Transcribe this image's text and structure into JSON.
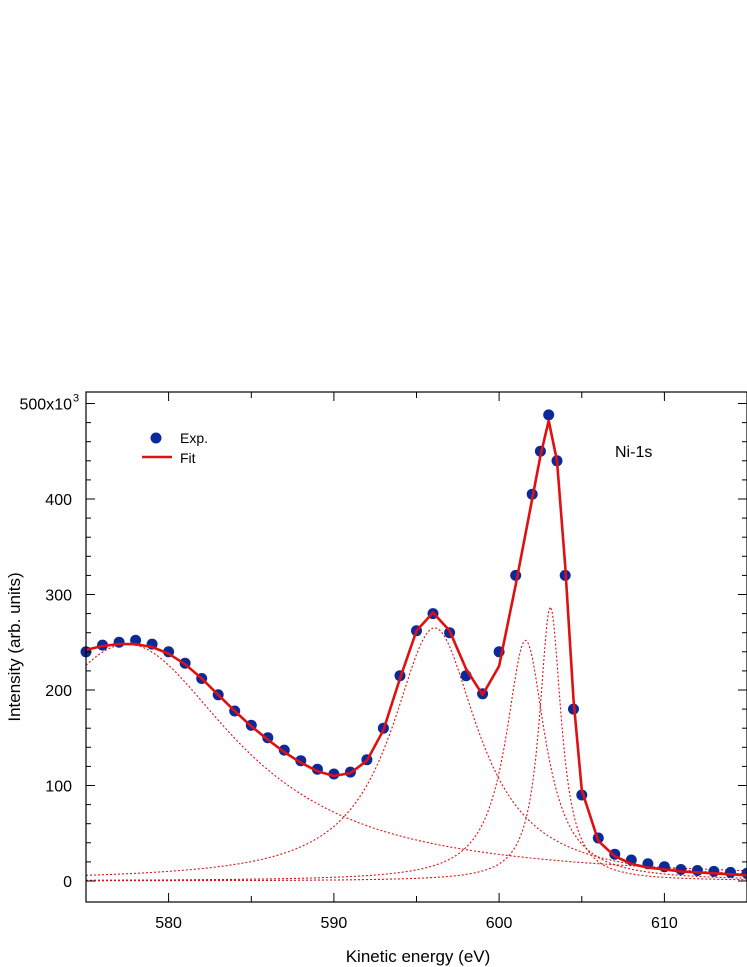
{
  "chart_data": {
    "type": "scatter",
    "title": "",
    "xlabel": "Kinetic energy (eV)",
    "ylabel": "Intensity (arb. units)",
    "xlim": [
      575,
      615
    ],
    "ylim": [
      -22000,
      512000
    ],
    "xticks": [
      580,
      590,
      600,
      610
    ],
    "xtick_labels": [
      "580",
      "590",
      "600",
      "610"
    ],
    "yticks": [
      0,
      100000,
      200000,
      300000,
      400000,
      500000
    ],
    "ytick_labels": [
      "0",
      "100",
      "200",
      "300",
      "400",
      "500x10"
    ],
    "ytick_exponent": "3",
    "annotation": "Ni-1s",
    "legend_position": "top-left",
    "legend": [
      {
        "label": "Exp.",
        "marker": "circle",
        "color": "#0a2a9a"
      },
      {
        "label": "Fit",
        "marker": "line",
        "color": "#e01010"
      }
    ],
    "components": [
      {
        "type": "lorentzian",
        "center": 577.5,
        "amplitude": 248000,
        "fwhm": 16,
        "color": "#e01010",
        "style": "dotted"
      },
      {
        "type": "lorentzian",
        "center": 596.1,
        "amplitude": 265000,
        "fwhm": 6.4,
        "color": "#e01010",
        "style": "dotted"
      },
      {
        "type": "lorentzian",
        "center": 601.6,
        "amplitude": 252000,
        "fwhm": 2.9,
        "color": "#e01010",
        "style": "dotted"
      },
      {
        "type": "lorentzian",
        "center": 603.1,
        "amplitude": 287000,
        "fwhm": 1.6,
        "color": "#e01010",
        "style": "dotted"
      }
    ],
    "series": [
      {
        "name": "Exp.",
        "color": "#0a2a9a",
        "x": [
          575,
          576,
          577,
          578,
          579,
          580,
          581,
          582,
          583,
          584,
          585,
          586,
          587,
          588,
          589,
          590,
          591,
          592,
          593,
          594,
          595,
          596,
          597,
          598,
          599,
          600,
          601,
          602,
          602.5,
          603,
          603.5,
          604,
          604.5,
          605,
          606,
          607,
          608,
          609,
          610,
          611,
          612,
          613,
          614,
          615
        ],
        "y": [
          240000,
          247000,
          250000,
          252000,
          248000,
          240000,
          228000,
          212000,
          195000,
          178000,
          163000,
          150000,
          137000,
          126000,
          117000,
          112000,
          114000,
          127000,
          160000,
          215000,
          262000,
          280000,
          260000,
          215000,
          196000,
          240000,
          320000,
          405000,
          450000,
          488000,
          440000,
          320000,
          180000,
          90000,
          45000,
          28000,
          22000,
          18000,
          15000,
          12000,
          11000,
          10000,
          9000,
          8000
        ]
      },
      {
        "name": "Fit",
        "color": "#e01010",
        "x": [
          575,
          576,
          577,
          578,
          579,
          580,
          581,
          582,
          583,
          584,
          585,
          586,
          587,
          588,
          589,
          590,
          591,
          592,
          593,
          594,
          595,
          596,
          597,
          598,
          599,
          600,
          601,
          602,
          602.5,
          603,
          603.5,
          604,
          604.5,
          605,
          606,
          607,
          608,
          609,
          610,
          611,
          612,
          613,
          614,
          615
        ],
        "y": [
          242000,
          246000,
          248000,
          248000,
          245000,
          238000,
          227000,
          212000,
          195000,
          178000,
          162000,
          148000,
          135000,
          124000,
          115000,
          110000,
          113000,
          126000,
          158000,
          212000,
          262000,
          281000,
          262000,
          222000,
          195000,
          225000,
          310000,
          400000,
          445000,
          482000,
          440000,
          330000,
          190000,
          95000,
          42000,
          26000,
          18000,
          14000,
          12000,
          10000,
          9000,
          8000,
          7000,
          6000
        ]
      }
    ]
  }
}
